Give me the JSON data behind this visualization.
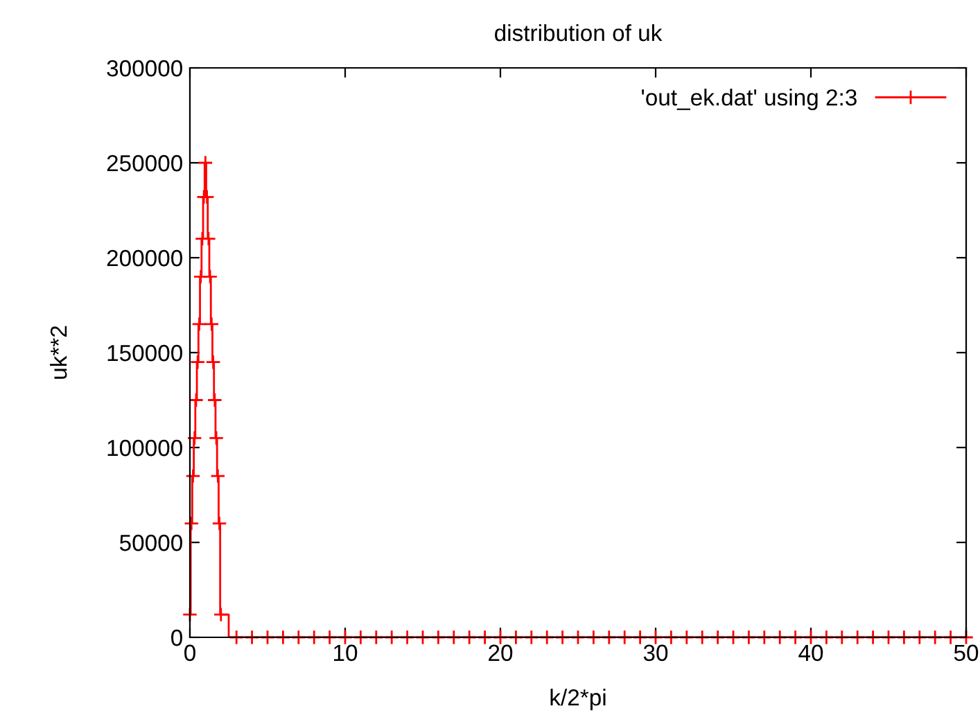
{
  "chart_data": {
    "type": "step",
    "title": "distribution of uk",
    "xlabel": "k/2*pi",
    "ylabel": "uk**2",
    "x": [
      0,
      0.1,
      0.2,
      0.3,
      0.4,
      0.5,
      0.6,
      0.7,
      0.8,
      0.9,
      1.0,
      1.1,
      1.2,
      1.3,
      1.4,
      1.5,
      1.6,
      1.7,
      1.8,
      1.9,
      2.0,
      3,
      4,
      5,
      6,
      7,
      8,
      9,
      10,
      11,
      12,
      13,
      14,
      15,
      16,
      17,
      18,
      19,
      20,
      21,
      22,
      23,
      24,
      25,
      26,
      27,
      28,
      29,
      30,
      31,
      32,
      33,
      34,
      35,
      36,
      37,
      38,
      39,
      40,
      41,
      42,
      43,
      44,
      45,
      46,
      47,
      48,
      49,
      50
    ],
    "series": [
      {
        "name": "'out_ek.dat' using 2:3",
        "color": "#ff0000",
        "values": [
          12000,
          60000,
          85000,
          105000,
          125000,
          145000,
          165000,
          190000,
          210000,
          232000,
          250000,
          232000,
          210000,
          190000,
          165000,
          145000,
          125000,
          105000,
          85000,
          60000,
          12000,
          0,
          0,
          0,
          0,
          0,
          0,
          0,
          0,
          0,
          0,
          0,
          0,
          0,
          0,
          0,
          0,
          0,
          0,
          0,
          0,
          0,
          0,
          0,
          0,
          0,
          0,
          0,
          0,
          0,
          0,
          0,
          0,
          0,
          0,
          0,
          0,
          0,
          0,
          0,
          0,
          0,
          0,
          0,
          0,
          0,
          0,
          0,
          0
        ]
      }
    ],
    "xlim": [
      0,
      50
    ],
    "xticks": [
      0,
      10,
      20,
      30,
      40,
      50
    ],
    "ylim": [
      0,
      300000
    ],
    "yticks": [
      0,
      50000,
      100000,
      150000,
      200000,
      250000,
      300000
    ],
    "marker": "cross",
    "legend": "top right",
    "grid": false
  }
}
